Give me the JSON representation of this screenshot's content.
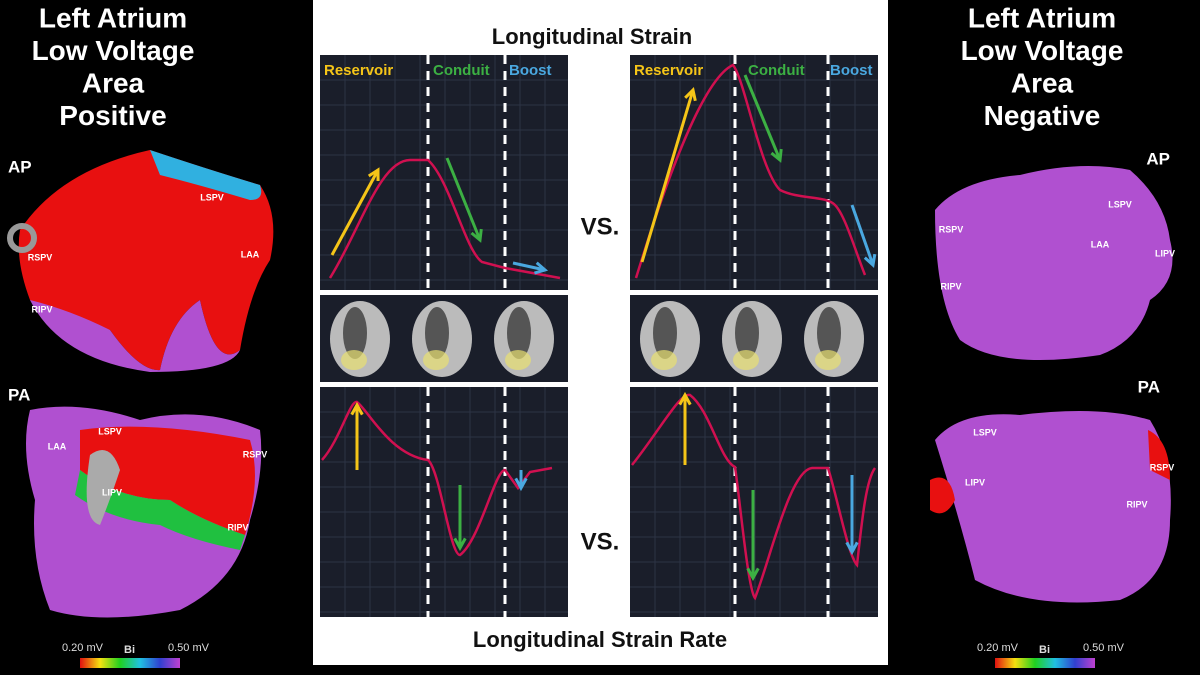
{
  "left": {
    "title_lines": [
      "Left Atrium",
      "Low Voltage",
      "Area",
      "Positive"
    ],
    "views": [
      {
        "label": "AP",
        "regions": [
          "LSPV",
          "RSPV",
          "LAA",
          "RIPV"
        ]
      },
      {
        "label": "PA",
        "regions": [
          "LAA",
          "LSPV",
          "RSPV",
          "LIPV",
          "RIPV"
        ]
      }
    ],
    "scale": {
      "min": "0.20 mV",
      "name": "Bi",
      "max": "0.50 mV"
    }
  },
  "right": {
    "title_lines": [
      "Left Atrium",
      "Low Voltage",
      "Area",
      "Negative"
    ],
    "views": [
      {
        "label": "AP",
        "regions": [
          "LSPV",
          "RSPV",
          "LAA",
          "LIPV",
          "RIPV"
        ]
      },
      {
        "label": "PA",
        "regions": [
          "LSPV",
          "RSPV",
          "LIPV",
          "RIPV"
        ]
      }
    ],
    "scale": {
      "min": "0.20 mV",
      "name": "Bi",
      "max": "0.50 mV"
    }
  },
  "center": {
    "title": "Longitudinal Strain",
    "strain_panels": [
      {
        "phases": [
          "Reservoir",
          "Conduit",
          "Boost"
        ]
      },
      {
        "phases": [
          "Reservoir",
          "Conduit",
          "Boost"
        ]
      }
    ],
    "comparisons": [
      "VS.",
      "VS."
    ],
    "footer": "Longitudinal Strain Rate"
  }
}
